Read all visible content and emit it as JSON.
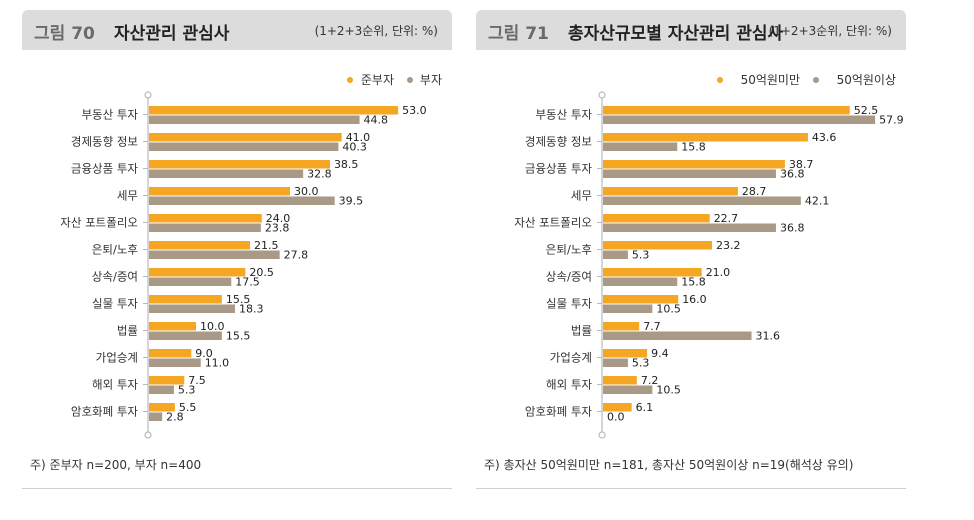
{
  "colors": {
    "orange": "#f5a623",
    "taupe": "#a89a87",
    "axis": "#b9b9b9"
  },
  "fig70": {
    "label": "그림 70",
    "title": "자산관리 관심사",
    "unit": "(1+2+3순위, 단위: %)",
    "footnote": "주) 준부자 n=200, 부자 n=400",
    "chart_data": {
      "type": "bar",
      "orientation": "horizontal",
      "categories": [
        "부동산 투자",
        "경제동향 정보",
        "금융상품 투자",
        "세무",
        "자산 포트폴리오",
        "은퇴/노후",
        "상속/증여",
        "실물 투자",
        "법률",
        "가업승계",
        "해외 투자",
        "암호화폐 투자"
      ],
      "series": [
        {
          "name": "준부자",
          "color": "#f5a623",
          "values": [
            53.0,
            41.0,
            38.5,
            30.0,
            24.0,
            21.5,
            20.5,
            15.5,
            10.0,
            9.0,
            7.5,
            5.5
          ]
        },
        {
          "name": "부자",
          "color": "#a89a87",
          "values": [
            44.8,
            40.3,
            32.8,
            39.5,
            23.8,
            27.8,
            17.5,
            18.3,
            15.5,
            11.0,
            5.3,
            2.8
          ]
        }
      ],
      "legend_position": "top-right"
    }
  },
  "fig71": {
    "label": "그림 71",
    "title": "총자산규모별 자산관리 관심사",
    "unit": "(1+2+3순위, 단위: %)",
    "footnote": "주) 총자산 50억원미만 n=181, 총자산 50억원이상 n=19(해석상 유의)",
    "chart_data": {
      "type": "bar",
      "orientation": "horizontal",
      "categories": [
        "부동산 투자",
        "경제동향 정보",
        "금융상품 투자",
        "세무",
        "자산 포트폴리오",
        "은퇴/노후",
        "상속/증여",
        "실물 투자",
        "법률",
        "가업승계",
        "해외 투자",
        "암호화폐 투자"
      ],
      "series": [
        {
          "name": "50억원미만",
          "color": "#f5a623",
          "values": [
            52.5,
            43.6,
            38.7,
            28.7,
            22.7,
            23.2,
            21.0,
            16.0,
            7.7,
            9.4,
            7.2,
            6.1
          ]
        },
        {
          "name": "50억원이상",
          "color": "#a89a87",
          "values": [
            57.9,
            15.8,
            36.8,
            42.1,
            36.8,
            5.3,
            15.8,
            10.5,
            31.6,
            5.3,
            10.5,
            0.0
          ]
        }
      ],
      "legend_position": "top-right"
    }
  }
}
